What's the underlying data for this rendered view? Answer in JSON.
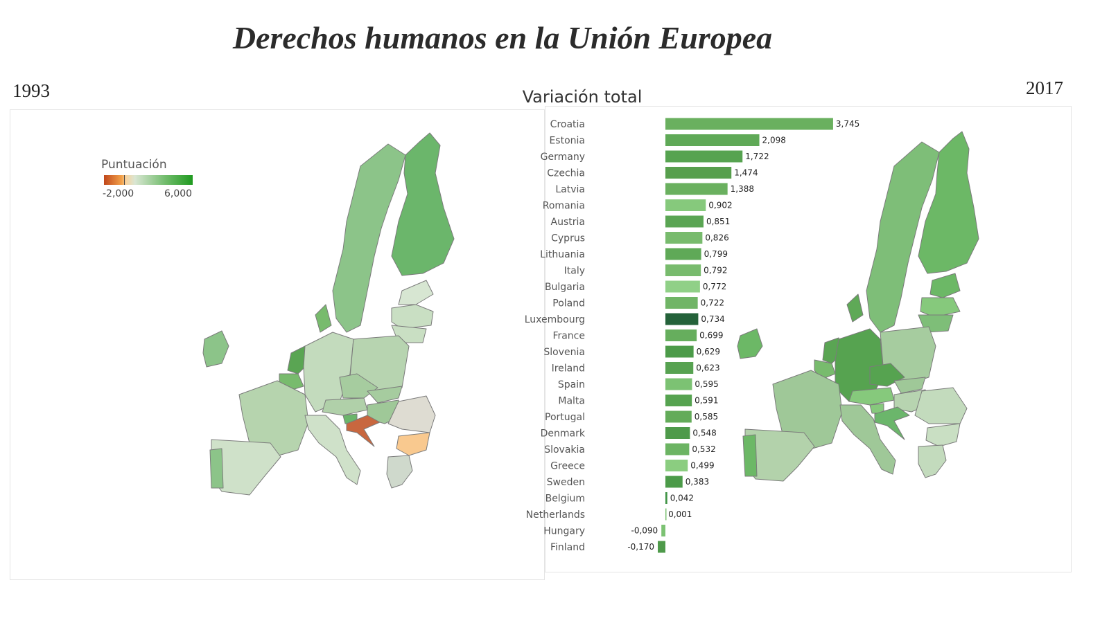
{
  "title": "Derechos humanos en la Unión Europea",
  "map_left": {
    "year": "1993"
  },
  "map_right": {
    "year": "2017"
  },
  "legend": {
    "title": "Puntuación",
    "min_label": "-2,000",
    "max_label": "6,000"
  },
  "colors": {
    "positive": "#6ab05f",
    "negative": "#5aa553",
    "accent_dark": "#1e6b39",
    "light": "#8fce85"
  },
  "chart_data": {
    "type": "bar",
    "orientation": "horizontal",
    "title": "Variación total",
    "categories": [
      "Croatia",
      "Estonia",
      "Germany",
      "Czechia",
      "Latvia",
      "Romania",
      "Austria",
      "Cyprus",
      "Lithuania",
      "Italy",
      "Bulgaria",
      "Poland",
      "Luxembourg",
      "France",
      "Slovenia",
      "Ireland",
      "Spain",
      "Malta",
      "Portugal",
      "Denmark",
      "Slovakia",
      "Greece",
      "Sweden",
      "Belgium",
      "Netherlands",
      "Hungary",
      "Finland"
    ],
    "values": [
      3.745,
      2.098,
      1.722,
      1.474,
      1.388,
      0.902,
      0.851,
      0.826,
      0.799,
      0.792,
      0.772,
      0.722,
      0.734,
      0.699,
      0.629,
      0.623,
      0.595,
      0.591,
      0.585,
      0.548,
      0.532,
      0.499,
      0.383,
      0.042,
      0.001,
      -0.09,
      -0.17
    ],
    "labels": [
      "3,745",
      "2,098",
      "1,722",
      "1,474",
      "1,388",
      "0,902",
      "0,851",
      "0,826",
      "0,799",
      "0,792",
      "0,772",
      "0,722",
      "0,734",
      "0,699",
      "0,629",
      "0,623",
      "0,595",
      "0,591",
      "0,585",
      "0,548",
      "0,532",
      "0,499",
      "0,383",
      "0,042",
      "0,001",
      "-0,090",
      "-0,170"
    ],
    "bar_colors": [
      "#6ab05f",
      "#5fa957",
      "#56a350",
      "#579f4d",
      "#6ab05f",
      "#86c97c",
      "#5aa553",
      "#78bb6d",
      "#5fa957",
      "#78bb6d",
      "#90d087",
      "#70b566",
      "#24623a",
      "#66ae5d",
      "#4c9b49",
      "#57a251",
      "#7cc273",
      "#56a350",
      "#63ab59",
      "#4e9a4a",
      "#6cb463",
      "#8bcd80",
      "#4c9b49",
      "#3f9344",
      "#7cc273",
      "#7cc273",
      "#4e9a4a"
    ]
  }
}
